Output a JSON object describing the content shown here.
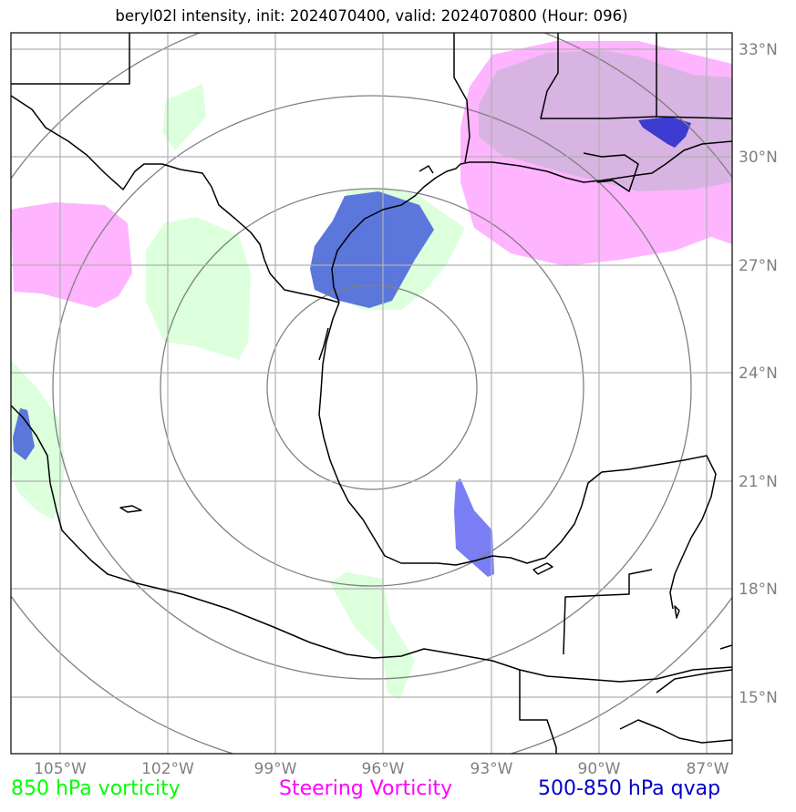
{
  "title": "beryl02l intensity, init: 2024070400, valid: 2024070800 (Hour: 096)",
  "x_ticks": [
    "105°W",
    "102°W",
    "99°W",
    "96°W",
    "93°W",
    "90°W",
    "87°W"
  ],
  "y_ticks": [
    "33°N",
    "30°N",
    "27°N",
    "24°N",
    "21°N",
    "18°N",
    "15°N"
  ],
  "legend": {
    "vort850": "850 hPa vorticity",
    "steering": "Steering Vorticity",
    "qvap": "500-850 hPa qvap"
  },
  "colors": {
    "vort850": "#00ff00",
    "steering": "#ff00ff",
    "qvap": "#0000cc",
    "vort850_fill": "#dcffdc",
    "steering_fill": "#ffb4ff",
    "qvap_fill": "#5b77dc",
    "grid": "#b0b0b0",
    "range_rings": "#808080",
    "coastline": "#000000"
  },
  "chart_data": {
    "type": "map",
    "projection": "plate carree",
    "lon_range": [
      -106.3,
      -86.3
    ],
    "lat_range": [
      13.5,
      33.5
    ],
    "gridlines_lon": [
      -105,
      -102,
      -99,
      -96,
      -93,
      -90,
      -87
    ],
    "gridlines_lat": [
      15,
      18,
      21,
      24,
      27,
      30,
      33
    ],
    "range_rings_center": [
      -96,
      23
    ]
  }
}
